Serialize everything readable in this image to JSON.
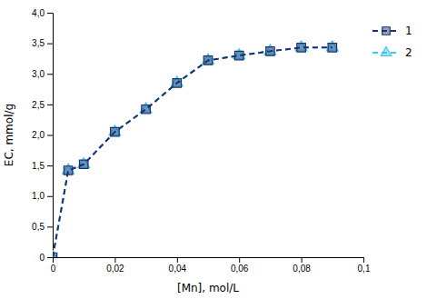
{
  "chart_data": {
    "type": "line",
    "xlabel": "[Mn], mol/L",
    "ylabel": "EC, mmol/g",
    "x": [
      0.0,
      0.005,
      0.01,
      0.02,
      0.03,
      0.04,
      0.05,
      0.06,
      0.07,
      0.08,
      0.09
    ],
    "series": [
      {
        "name": "1",
        "color": "#1a3070",
        "marker": "square",
        "line_style": "dashed",
        "values": [
          0.0,
          1.42,
          1.52,
          2.05,
          2.42,
          2.85,
          3.22,
          3.3,
          3.37,
          3.43,
          3.43
        ]
      },
      {
        "name": "2",
        "color": "#40c8e8",
        "marker": "triangle",
        "line_style": "dashed",
        "values": [
          0.0,
          1.42,
          1.52,
          2.05,
          2.42,
          2.85,
          3.22,
          3.3,
          3.37,
          3.43,
          3.43
        ]
      }
    ],
    "xlim": [
      0,
      0.1
    ],
    "ylim": [
      0.0,
      4.0
    ],
    "xticks": [
      0,
      {
        "value": 0.02,
        "label": "0,02"
      },
      {
        "value": 0.04,
        "label": "0,04"
      },
      {
        "value": 0.06,
        "label": "0,06"
      },
      {
        "value": 0.08,
        "label": "0,08"
      },
      {
        "value": 0.1,
        "label": "0,1"
      }
    ],
    "yticks": [
      0,
      {
        "value": 0.5,
        "label": "0,5"
      },
      {
        "value": 1.0,
        "label": "1,0"
      },
      {
        "value": 1.5,
        "label": "1,5"
      },
      {
        "value": 2.0,
        "label": "2,0"
      },
      {
        "value": 2.5,
        "label": "2,5"
      },
      {
        "value": 3.0,
        "label": "3,0"
      },
      {
        "value": 3.5,
        "label": "3,5"
      },
      {
        "value": 4.0,
        "label": "4,0"
      }
    ]
  }
}
